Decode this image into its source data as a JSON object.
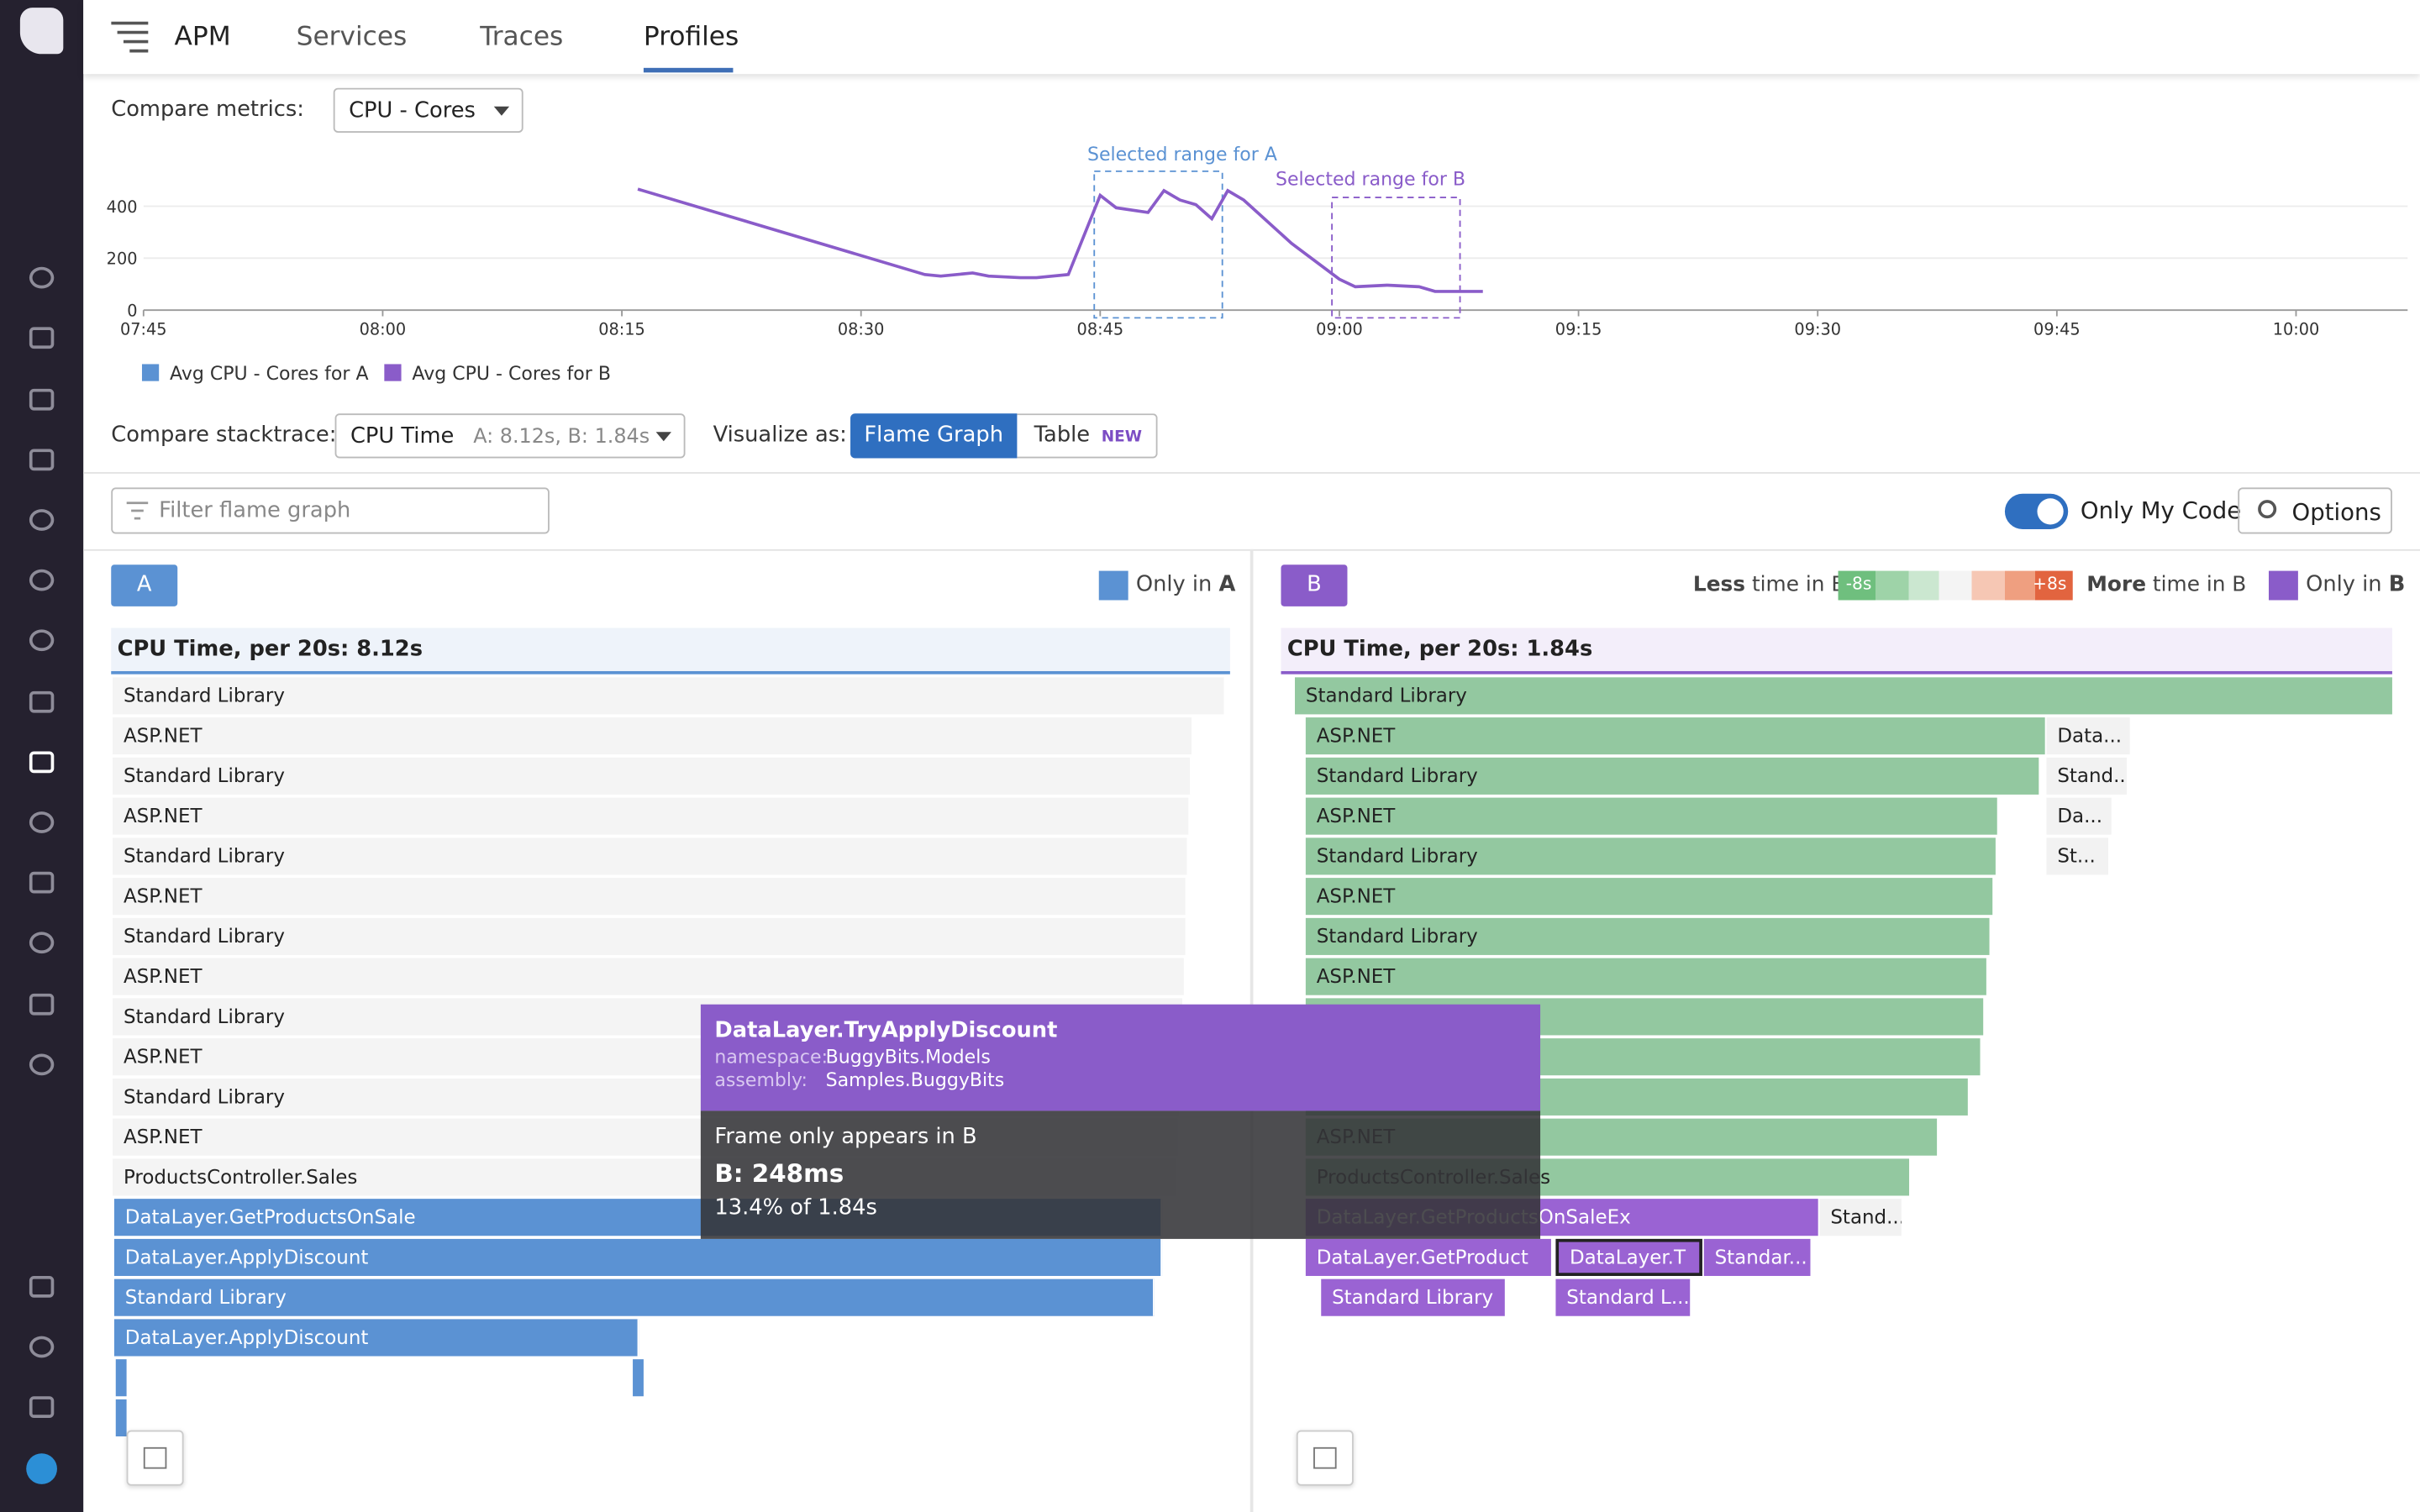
{
  "nav": {
    "title": "APM",
    "tabs": [
      "Services",
      "Traces",
      "Profiles"
    ]
  },
  "metrics": {
    "label": "Compare metrics:",
    "value": "CPU - Cores"
  },
  "chart_data": {
    "type": "line",
    "annotations": [
      "Selected range for A",
      "Selected range for B"
    ],
    "x": [
      "08:16",
      "08:34",
      "08:35",
      "08:37",
      "08:38",
      "08:40",
      "08:41",
      "08:43",
      "08:45",
      "08:46",
      "08:48",
      "08:49",
      "08:50",
      "08:51",
      "08:52",
      "08:53",
      "08:54",
      "08:57",
      "09:00",
      "09:01",
      "09:03",
      "09:05",
      "09:06",
      "09:09"
    ],
    "series": [
      {
        "name": "Avg CPU - Cores for A",
        "color": "#5b92d3",
        "values": [
          null,
          null,
          null,
          null,
          null,
          null,
          null,
          null,
          null,
          null,
          null,
          null,
          null,
          null,
          null,
          null,
          null,
          null,
          null,
          null,
          null,
          null,
          null,
          null
        ]
      },
      {
        "name": "Avg CPU - Cores for B",
        "color": "#8a5cc9",
        "values": [
          466,
          137,
          131,
          143,
          131,
          125,
          125,
          137,
          442,
          394,
          376,
          460,
          424,
          406,
          352,
          460,
          424,
          257,
          119,
          90,
          96,
          90,
          72,
          72
        ]
      }
    ],
    "xlim": [
      "07:45",
      "10:07"
    ],
    "xticks": [
      "07:45",
      "08:00",
      "08:15",
      "08:30",
      "08:45",
      "09:00",
      "09:15",
      "09:30",
      "09:45",
      "10:00"
    ],
    "ylim": [
      0,
      600
    ],
    "yticks": [
      0,
      200,
      400
    ],
    "grid": true
  },
  "stacktrace": {
    "label": "Compare stacktrace:",
    "value": "CPU Time",
    "detail": "A: 8.12s, B: 1.84s",
    "visualize": "Visualize as:",
    "options": [
      "Flame Graph",
      "Table"
    ],
    "badge": "NEW"
  },
  "filter": {
    "placeholder": "Filter flame graph",
    "toggle": "Only My Code",
    "options": "Options"
  },
  "panel_a": {
    "badge": "A",
    "only_in": "Only in",
    "only_in_key": "A",
    "header": "CPU Time, per 20s: 8.12s",
    "frames": [
      "Standard Library",
      "ASP.NET",
      "Standard Library",
      "ASP.NET",
      "Standard Library",
      "ASP.NET",
      "Standard Library",
      "ASP.NET",
      "Standard Library",
      "ASP.NET",
      "Standard Library",
      "ASP.NET",
      "ProductsController.Sales",
      "DataLayer.GetProductsOnSale",
      "DataLayer.ApplyDiscount",
      "Standard Library",
      "DataLayer.ApplyDiscount"
    ]
  },
  "panel_b": {
    "badge": "B",
    "less": "Less",
    "less_suffix": "time in B",
    "low": "-8s",
    "high": "+8s",
    "more": "More",
    "more_suffix": "time in B",
    "only_in": "Only in",
    "only_in_key": "B",
    "header": "CPU Time, per 20s: 1.84s",
    "frames": [
      "Standard Library",
      "ASP.NET",
      "Data...",
      "Standard Library",
      "Stand...",
      "ASP.NET",
      "Da...",
      "Standard Library",
      "St...",
      "ASP.NET",
      "Standard Library",
      "ASP.NET",
      "ASP.NET",
      "ProductsController.Sales",
      "DataLayer.GetProductsOnSaleEx",
      "Stand...",
      "DataLayer.GetProduct",
      "DataLayer.T",
      "Standar...",
      "Standard Library",
      "Standard L..."
    ]
  },
  "tooltip": {
    "title": "DataLayer.TryApplyDiscount",
    "ns_key": "namespace:",
    "ns": "BuggyBits.Models",
    "asm_key": "assembly:",
    "asm": "Samples.BuggyBits",
    "message": "Frame only appears in B",
    "value": "B: 248ms",
    "share": "13.4% of 1.84s"
  }
}
